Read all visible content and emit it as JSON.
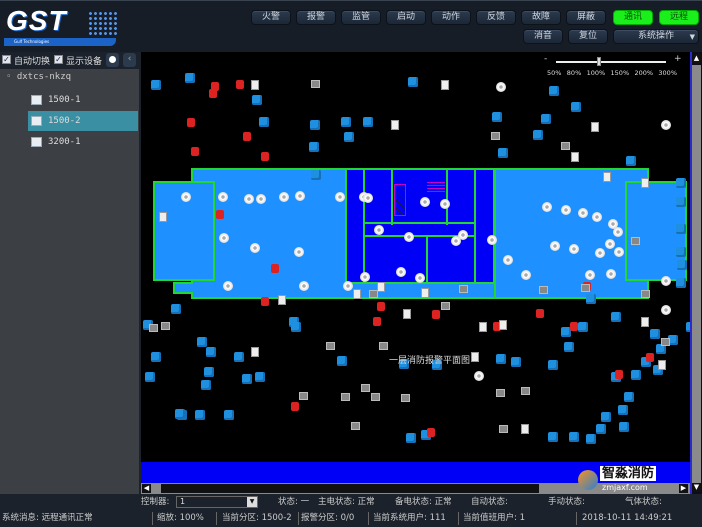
{
  "header": {
    "logo": "GST",
    "logo_sub": "Gulf Technologies",
    "buttons": [
      "火警",
      "报警",
      "监管",
      "启动",
      "动作",
      "反馈",
      "故障",
      "屏蔽",
      "通讯",
      "远程"
    ],
    "row2": [
      "消音",
      "复位"
    ],
    "system_ops": "系统操作"
  },
  "sidebar": {
    "auto_switch": "自动切换",
    "show_devices": "显示设备",
    "root": "dxtcs-nkzq",
    "items": [
      {
        "label": "1500-1"
      },
      {
        "label": "1500-2",
        "selected": true
      },
      {
        "label": "3200-1"
      }
    ]
  },
  "zoom": {
    "levels": [
      "50%",
      "80%",
      "100%",
      "150%",
      "200%",
      "300%"
    ],
    "current": "100%",
    "minus": "-",
    "plus": "+"
  },
  "map": {
    "caption": "一层消防报警平面图"
  },
  "status": {
    "controller_label": "控制器:",
    "controller_value": "1",
    "state": "状态: 一",
    "main_power": "主电状态: 正常",
    "backup_power": "备电状态: 正常",
    "auto": "自动状态:",
    "manual": "手动状态:",
    "gas": "气体状态:"
  },
  "footer": {
    "message": "系统消息: 远程通讯正常",
    "zoom": "缩放: 100%",
    "zone": "当前分区: 1500-2",
    "alarm_zone": "报警分区: 0/0",
    "sys_user": "当前系统用户: 111",
    "duty_user": "当前值班用户: 1",
    "datetime": "2018-10-11 14:49:21"
  },
  "watermark": {
    "text": "智淼消防",
    "url": "zmjaxf.com"
  },
  "colors": {
    "active_green": "#1bef1b",
    "selected": "#3a8fa3",
    "floor": "#1e90ff",
    "core": "#0000f6",
    "wall": "#22d633"
  }
}
